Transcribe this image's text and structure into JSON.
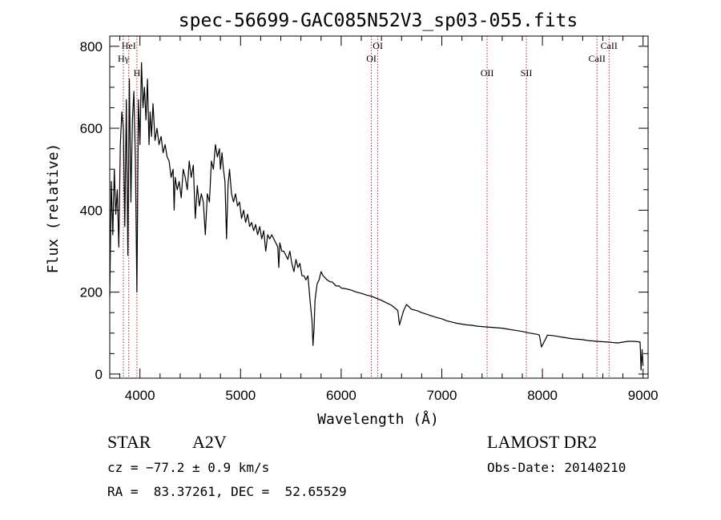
{
  "chart_data": {
    "type": "line",
    "title": "spec-56699-GAC085N52V3_sp03-055.fits",
    "xlabel": "Wavelength (Å)",
    "ylabel": "Flux (relative)",
    "xlim": [
      3700,
      9050
    ],
    "ylim": [
      -10,
      825
    ],
    "xticks": [
      4000,
      5000,
      6000,
      7000,
      8000,
      9000
    ],
    "xtick_labels": [
      "4000",
      "5000",
      "6000",
      "7000",
      "8000",
      "9000"
    ],
    "yticks": [
      0,
      200,
      400,
      600,
      800
    ],
    "ytick_labels": [
      "0",
      "200",
      "400",
      "600",
      "800"
    ],
    "grid": false,
    "line_color": "#000000",
    "marker_color": "#b22222",
    "line_markers": [
      {
        "label": "HeI",
        "x": 3889,
        "row": 0
      },
      {
        "label": "Hγ",
        "x": 3835,
        "row": 1
      },
      {
        "label": "H",
        "x": 3970,
        "row": 2
      },
      {
        "label": "OI",
        "x": 6364,
        "row": 0
      },
      {
        "label": "OI",
        "x": 6300,
        "row": 1
      },
      {
        "label": "OII",
        "x": 7450,
        "row": 2
      },
      {
        "label": "SII",
        "x": 7840,
        "row": 2
      },
      {
        "label": "CaII",
        "x": 8662,
        "row": 0
      },
      {
        "label": "CaII",
        "x": 8542,
        "row": 1
      }
    ],
    "series": [
      {
        "x": [
          3700,
          3715,
          3730,
          3745,
          3760,
          3775,
          3790,
          3805,
          3820,
          3835,
          3850,
          3865,
          3880,
          3895,
          3910,
          3925,
          3940,
          3955,
          3970,
          3985,
          4000,
          4015,
          4030,
          4045,
          4060,
          4075,
          4090,
          4101,
          4115,
          4130,
          4150,
          4170,
          4190,
          4210,
          4230,
          4250,
          4270,
          4290,
          4310,
          4330,
          4340,
          4350,
          4370,
          4390,
          4410,
          4430,
          4450,
          4471,
          4490,
          4510,
          4530,
          4550,
          4570,
          4590,
          4610,
          4630,
          4650,
          4670,
          4690,
          4710,
          4730,
          4750,
          4770,
          4790,
          4800,
          4815,
          4830,
          4845,
          4861,
          4875,
          4890,
          4910,
          4930,
          4950,
          4970,
          4990,
          5010,
          5030,
          5050,
          5070,
          5090,
          5110,
          5130,
          5150,
          5170,
          5190,
          5210,
          5230,
          5250,
          5270,
          5290,
          5310,
          5330,
          5350,
          5370,
          5380,
          5390,
          5410,
          5430,
          5450,
          5470,
          5490,
          5510,
          5530,
          5550,
          5570,
          5590,
          5610,
          5630,
          5650,
          5670,
          5690,
          5710,
          5720,
          5730,
          5740,
          5750,
          5760,
          5780,
          5800,
          5820,
          5840,
          5860,
          5890,
          5910,
          5930,
          5950,
          5980,
          6000,
          6050,
          6100,
          6150,
          6200,
          6250,
          6300,
          6350,
          6400,
          6450,
          6500,
          6540,
          6563,
          6580,
          6620,
          6650,
          6700,
          6750,
          6800,
          6850,
          6900,
          6950,
          7000,
          7050,
          7100,
          7150,
          7200,
          7250,
          7300,
          7350,
          7400,
          7450,
          7500,
          7550,
          7600,
          7650,
          7700,
          7750,
          7800,
          7850,
          7900,
          7950,
          7970,
          7990,
          8050,
          8100,
          8150,
          8200,
          8250,
          8300,
          8350,
          8400,
          8450,
          8500,
          8542,
          8600,
          8662,
          8700,
          8750,
          8800,
          8850,
          8900,
          8950,
          8970,
          8980,
          8990,
          9000
        ],
        "values": [
          190,
          470,
          340,
          500,
          390,
          450,
          310,
          560,
          640,
          600,
          360,
          670,
          290,
          720,
          420,
          620,
          690,
          520,
          200,
          670,
          560,
          760,
          650,
          700,
          620,
          720,
          560,
          640,
          580,
          660,
          570,
          600,
          560,
          580,
          540,
          560,
          530,
          520,
          480,
          500,
          400,
          480,
          450,
          470,
          430,
          500,
          480,
          450,
          520,
          480,
          510,
          380,
          460,
          410,
          440,
          420,
          340,
          440,
          420,
          520,
          500,
          560,
          530,
          550,
          500,
          540,
          500,
          470,
          330,
          460,
          500,
          440,
          420,
          440,
          410,
          420,
          380,
          400,
          370,
          390,
          360,
          370,
          350,
          365,
          340,
          360,
          330,
          350,
          300,
          340,
          330,
          340,
          330,
          320,
          310,
          260,
          320,
          300,
          300,
          290,
          280,
          300,
          270,
          250,
          280,
          260,
          270,
          240,
          240,
          230,
          240,
          180,
          130,
          70,
          110,
          180,
          200,
          220,
          230,
          250,
          240,
          235,
          230,
          225,
          225,
          220,
          215,
          215,
          210,
          208,
          205,
          200,
          197,
          193,
          190,
          185,
          180,
          174,
          168,
          160,
          155,
          120,
          155,
          170,
          158,
          155,
          150,
          146,
          142,
          138,
          135,
          130,
          127,
          124,
          122,
          120,
          119,
          117,
          116,
          115,
          114,
          113,
          112,
          110,
          108,
          106,
          104,
          101,
          99,
          97,
          95,
          66,
          95,
          94,
          92,
          90,
          88,
          86,
          85,
          84,
          82,
          81,
          80,
          79,
          78,
          77,
          76,
          78,
          80,
          80,
          79,
          78,
          10,
          60,
          20
        ]
      }
    ]
  },
  "info": {
    "object_class": "STAR",
    "subclass": "A2V",
    "survey": "LAMOST DR2",
    "redshift": "cz = −77.2 ± 0.9 km/s",
    "obs_date": "Obs-Date: 20140210",
    "coords": "RA =  83.37261, DEC =  52.65529"
  }
}
